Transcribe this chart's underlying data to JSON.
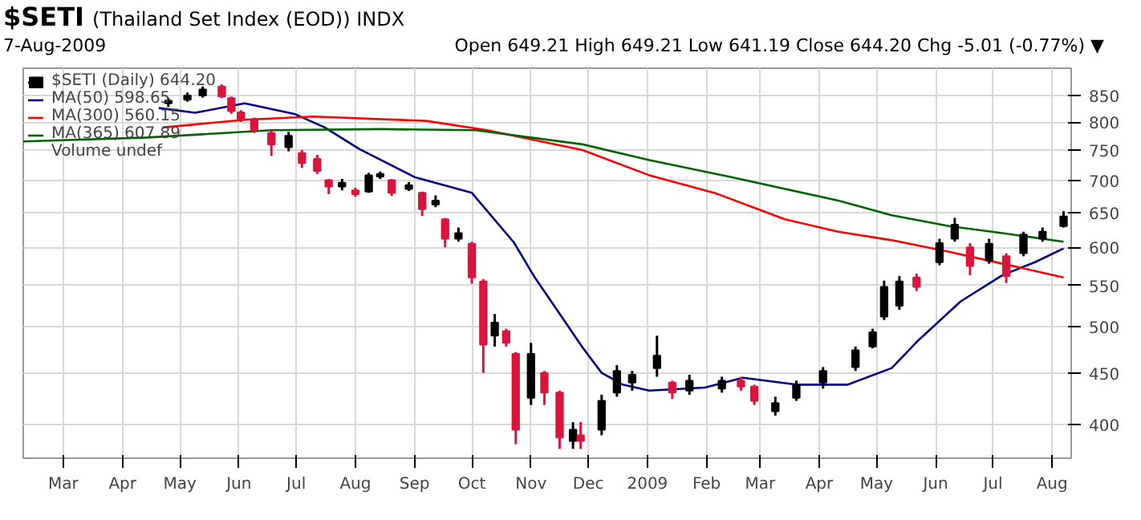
{
  "chart_data": {
    "type": "candlestick",
    "title": "$SETI (Thailand Set Index (EOD)) INDX",
    "subtitle": "7-Aug-2009",
    "annotations": [
      "Open 649.21  High 649.21  Low 641.19  Close 644.20  Chg -5.01 (-0.77%) ▼",
      "Volume undef"
    ],
    "series": [
      {
        "name": "$SETI (Daily) 644.20",
        "x": [
          "2008-04-25",
          "2008-05-05",
          "2008-05-13",
          "2008-05-23",
          "2008-05-28",
          "2008-06-02",
          "2008-06-09",
          "2008-06-18",
          "2008-06-27",
          "2008-07-04",
          "2008-07-12",
          "2008-07-18",
          "2008-07-25",
          "2008-08-01",
          "2008-08-08",
          "2008-08-14",
          "2008-08-20",
          "2008-08-29",
          "2008-09-05",
          "2008-09-12",
          "2008-09-17",
          "2008-09-24",
          "2008-10-01",
          "2008-10-07",
          "2008-10-13",
          "2008-10-19",
          "2008-10-24",
          "2008-11-01",
          "2008-11-08",
          "2008-11-16",
          "2008-11-23",
          "2008-11-27",
          "2008-12-08",
          "2008-12-16",
          "2008-12-24",
          "2009-01-06",
          "2009-01-14",
          "2009-01-23",
          "2009-02-09",
          "2009-02-19",
          "2009-02-26",
          "2009-03-09",
          "2009-03-20",
          "2009-04-03",
          "2009-04-20",
          "2009-04-29",
          "2009-05-05",
          "2009-05-13",
          "2009-05-22",
          "2009-06-03",
          "2009-06-11",
          "2009-06-19",
          "2009-06-29",
          "2009-07-08",
          "2009-07-17",
          "2009-07-27",
          "2009-08-07"
        ],
        "ohlc": [
          [
            835,
            845,
            828,
            840
          ],
          [
            842,
            856,
            838,
            850
          ],
          [
            850,
            868,
            846,
            862
          ],
          [
            868,
            872,
            845,
            848
          ],
          [
            845,
            848,
            815,
            820
          ],
          [
            818,
            822,
            800,
            805
          ],
          [
            805,
            808,
            780,
            785
          ],
          [
            780,
            785,
            740,
            760
          ],
          [
            755,
            782,
            748,
            775
          ],
          [
            745,
            750,
            720,
            728
          ],
          [
            735,
            742,
            710,
            715
          ],
          [
            700,
            702,
            678,
            690
          ],
          [
            690,
            702,
            684,
            696
          ],
          [
            684,
            688,
            674,
            678
          ],
          [
            682,
            712,
            680,
            708
          ],
          [
            706,
            714,
            702,
            710
          ],
          [
            700,
            702,
            675,
            680
          ],
          [
            686,
            697,
            683,
            692
          ],
          [
            680,
            682,
            645,
            655
          ],
          [
            662,
            676,
            658,
            668
          ],
          [
            640,
            642,
            600,
            612
          ],
          [
            612,
            628,
            608,
            620
          ],
          [
            605,
            608,
            552,
            560
          ],
          [
            555,
            558,
            450,
            480
          ],
          [
            490,
            515,
            478,
            505
          ],
          [
            495,
            498,
            478,
            482
          ],
          [
            470,
            472,
            382,
            395
          ],
          [
            425,
            482,
            418,
            470
          ],
          [
            450,
            452,
            418,
            430
          ],
          [
            430,
            432,
            378,
            388
          ],
          [
            385,
            402,
            378,
            395
          ],
          [
            390,
            402,
            378,
            385
          ],
          [
            395,
            428,
            390,
            422
          ],
          [
            430,
            458,
            426,
            452
          ],
          [
            440,
            452,
            432,
            448
          ],
          [
            455,
            490,
            446,
            468
          ],
          [
            440,
            442,
            424,
            430
          ],
          [
            432,
            448,
            428,
            442
          ],
          [
            434,
            446,
            430,
            442
          ],
          [
            442,
            446,
            432,
            436
          ],
          [
            436,
            438,
            418,
            422
          ],
          [
            412,
            426,
            408,
            420
          ],
          [
            425,
            442,
            422,
            438
          ],
          [
            440,
            456,
            434,
            452
          ],
          [
            456,
            478,
            452,
            474
          ],
          [
            478,
            498,
            476,
            494
          ],
          [
            512,
            556,
            508,
            548
          ],
          [
            525,
            562,
            520,
            555
          ],
          [
            560,
            565,
            543,
            548
          ],
          [
            580,
            612,
            576,
            606
          ],
          [
            612,
            642,
            608,
            632
          ],
          [
            600,
            606,
            563,
            575
          ],
          [
            582,
            612,
            578,
            605
          ],
          [
            588,
            592,
            553,
            562
          ],
          [
            592,
            622,
            588,
            618
          ],
          [
            612,
            628,
            608,
            622
          ],
          [
            630,
            652,
            628,
            644
          ]
        ]
      },
      {
        "name": "MA(50) 598.65",
        "type": "line",
        "color": "#00008b",
        "x": [
          "2008-04-20",
          "2008-05-09",
          "2008-06-04",
          "2008-06-30",
          "2008-07-16",
          "2008-08-03",
          "2008-09-01",
          "2008-10-01",
          "2008-10-23",
          "2008-11-03",
          "2008-11-17",
          "2008-11-28",
          "2008-12-08",
          "2008-12-19",
          "2009-01-02",
          "2009-01-31",
          "2009-02-20",
          "2009-03-20",
          "2009-04-16",
          "2009-05-09",
          "2009-05-23",
          "2009-06-14",
          "2009-07-06",
          "2009-07-23",
          "2009-08-07"
        ],
        "values": [
          826,
          817,
          835,
          815,
          790,
          752,
          705,
          680,
          607,
          560,
          512,
          477,
          450,
          438,
          432,
          435,
          445,
          438,
          438,
          455,
          485,
          530,
          563,
          580,
          598.65
        ]
      },
      {
        "name": "MA(300) 560.15",
        "type": "line",
        "color": "#ff0000",
        "x": [
          "2008-04-22",
          "2008-06-04",
          "2008-07-10",
          "2008-09-07",
          "2008-10-09",
          "2008-11-28",
          "2009-01-02",
          "2009-02-06",
          "2009-03-14",
          "2009-04-11",
          "2009-05-09",
          "2009-06-08",
          "2009-07-06",
          "2009-08-07"
        ],
        "values": [
          790,
          804,
          810,
          802,
          785,
          750,
          708,
          679,
          640,
          622,
          610,
          594,
          578,
          560.15
        ]
      },
      {
        "name": "MA(365) 607.89",
        "type": "line",
        "color": "#006400",
        "x": [
          "2008-02-09",
          "2008-04-14",
          "2008-06-18",
          "2008-08-14",
          "2008-10-03",
          "2008-11-28",
          "2009-01-02",
          "2009-02-14",
          "2009-04-11",
          "2009-05-09",
          "2009-06-08",
          "2009-07-06",
          "2009-08-07"
        ],
        "values": [
          765,
          772,
          785,
          787,
          785,
          760,
          733,
          705,
          668,
          646,
          630,
          620,
          607.89
        ]
      }
    ],
    "xlim": [
      "2008-02-09",
      "2009-08-11"
    ],
    "xticks": [
      {
        "value": "2008-03",
        "label": "Mar"
      },
      {
        "value": "2008-04",
        "label": "Apr"
      },
      {
        "value": "2008-05",
        "label": "May"
      },
      {
        "value": "2008-06",
        "label": "Jun"
      },
      {
        "value": "2008-07",
        "label": "Jul"
      },
      {
        "value": "2008-08",
        "label": "Aug"
      },
      {
        "value": "2008-09",
        "label": "Sep"
      },
      {
        "value": "2008-10",
        "label": "Oct"
      },
      {
        "value": "2008-11",
        "label": "Nov"
      },
      {
        "value": "2008-12",
        "label": "Dec"
      },
      {
        "value": "2009-01",
        "label": "2009"
      },
      {
        "value": "2009-02",
        "label": "Feb"
      },
      {
        "value": "2009-03",
        "label": "Mar"
      },
      {
        "value": "2009-04",
        "label": "Apr"
      },
      {
        "value": "2009-05",
        "label": "May"
      },
      {
        "value": "2009-06",
        "label": "Jun"
      },
      {
        "value": "2009-07",
        "label": "Jul"
      },
      {
        "value": "2009-08",
        "label": "Aug"
      }
    ],
    "ylim": [
      370,
      905
    ],
    "yticks": [
      400,
      450,
      500,
      550,
      600,
      650,
      700,
      750,
      800,
      850
    ],
    "log": true,
    "grid": true,
    "legend": "top left"
  }
}
